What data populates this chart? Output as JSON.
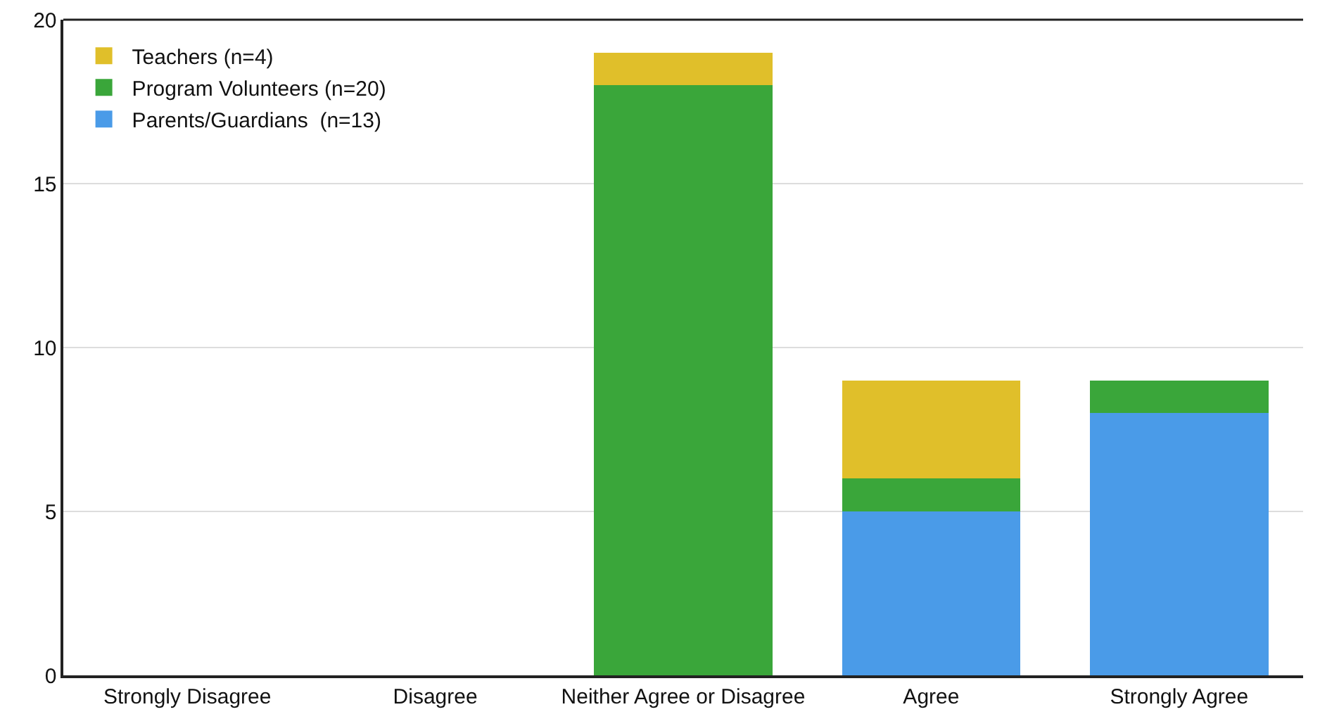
{
  "chart_data": {
    "type": "bar",
    "stacked": true,
    "categories": [
      "Strongly Disagree",
      "Disagree",
      "Neither Agree or Disagree",
      "Agree",
      "Strongly Agree"
    ],
    "series": [
      {
        "name": "Parents/Guardians  (n=13)",
        "color": "#4a9be8",
        "values": [
          0,
          0,
          0,
          5,
          8
        ]
      },
      {
        "name": "Program Volunteers (n=20)",
        "color": "#3aa63a",
        "values": [
          0,
          0,
          18,
          1,
          1
        ]
      },
      {
        "name": "Teachers (n=4)",
        "color": "#e0bf2a",
        "values": [
          0,
          0,
          1,
          3,
          0
        ]
      }
    ],
    "ylim": [
      0,
      20
    ],
    "yticks": [
      0,
      5,
      10,
      15,
      20
    ],
    "grid": "y",
    "legend": "top left"
  }
}
